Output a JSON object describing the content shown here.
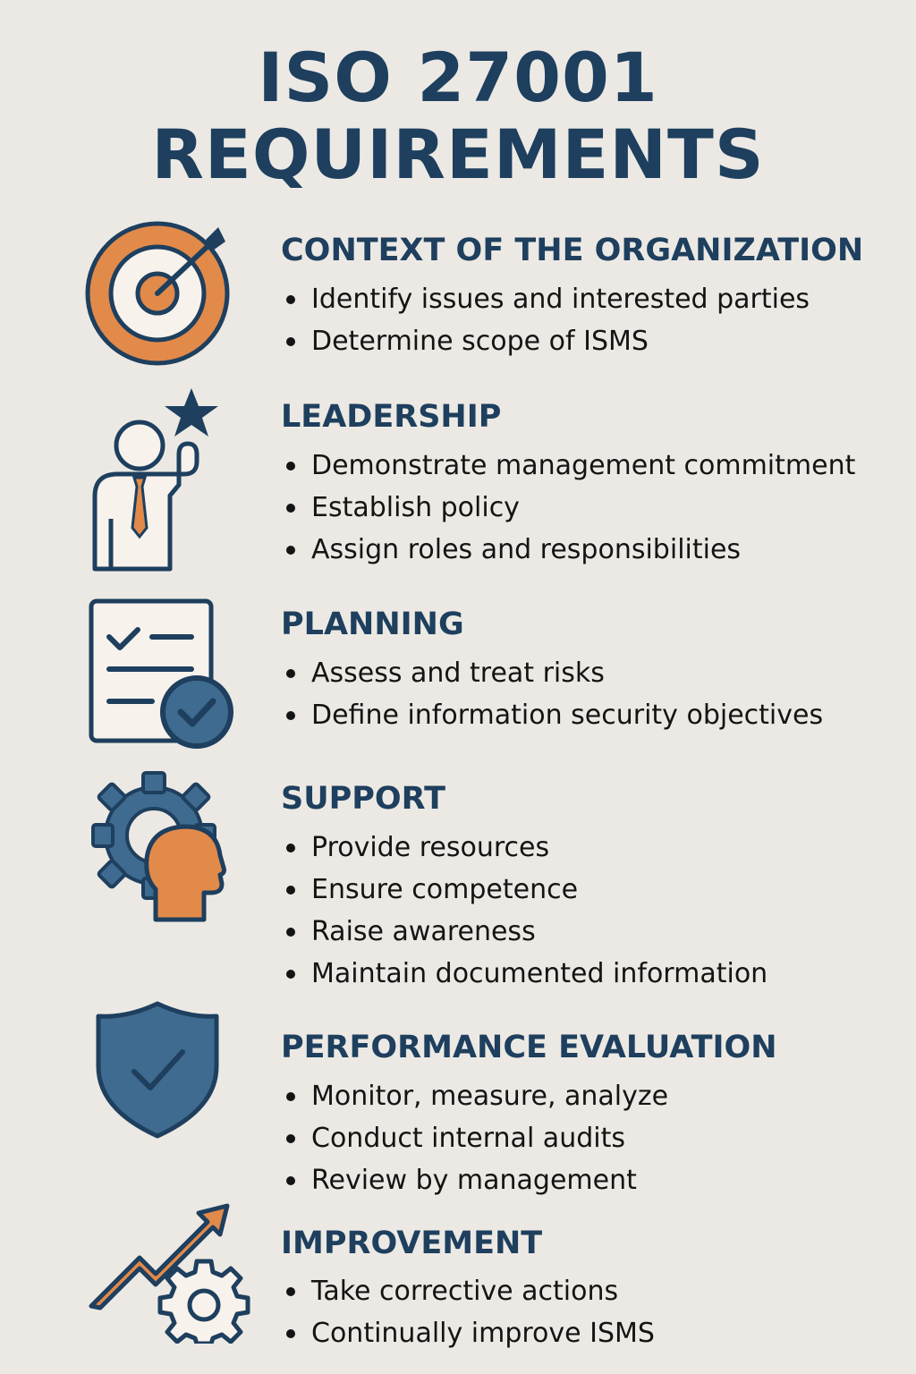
{
  "title": {
    "line1": "ISO 27001",
    "line2": "REQUIREMENTS"
  },
  "colors": {
    "navy": "#1E3F5E",
    "orange": "#E28A4A",
    "cream": "#F7F2EC",
    "background": "#ECE9E4"
  },
  "sections": [
    {
      "icon": "target-icon",
      "heading": "CONTEXT OF THE ORGANIZATION",
      "items": [
        "Identify issues and interested parties",
        "Determine scope of ISMS"
      ]
    },
    {
      "icon": "leader-with-star-icon",
      "heading": "LEADERSHIP",
      "items": [
        "Demonstrate management commitment",
        "Establish policy",
        "Assign roles and responsibilities"
      ]
    },
    {
      "icon": "checklist-icon",
      "heading": "PLANNING",
      "items": [
        "Assess and treat risks",
        "Define information security objectives"
      ]
    },
    {
      "icon": "gear-head-icon",
      "heading": "SUPPORT",
      "items": [
        "Provide resources",
        "Ensure competence",
        "Raise awareness",
        "Maintain documented information"
      ]
    },
    {
      "icon": "shield-check-icon",
      "heading": "PERFORMANCE EVALUATION",
      "items": [
        "Monitor, measure, analyze",
        "Conduct internal audits",
        "Review by management"
      ]
    },
    {
      "icon": "growth-arrow-gear-icon",
      "heading": "IMPROVEMENT",
      "items": [
        "Take corrective actions",
        "Continually improve ISMS"
      ]
    }
  ]
}
